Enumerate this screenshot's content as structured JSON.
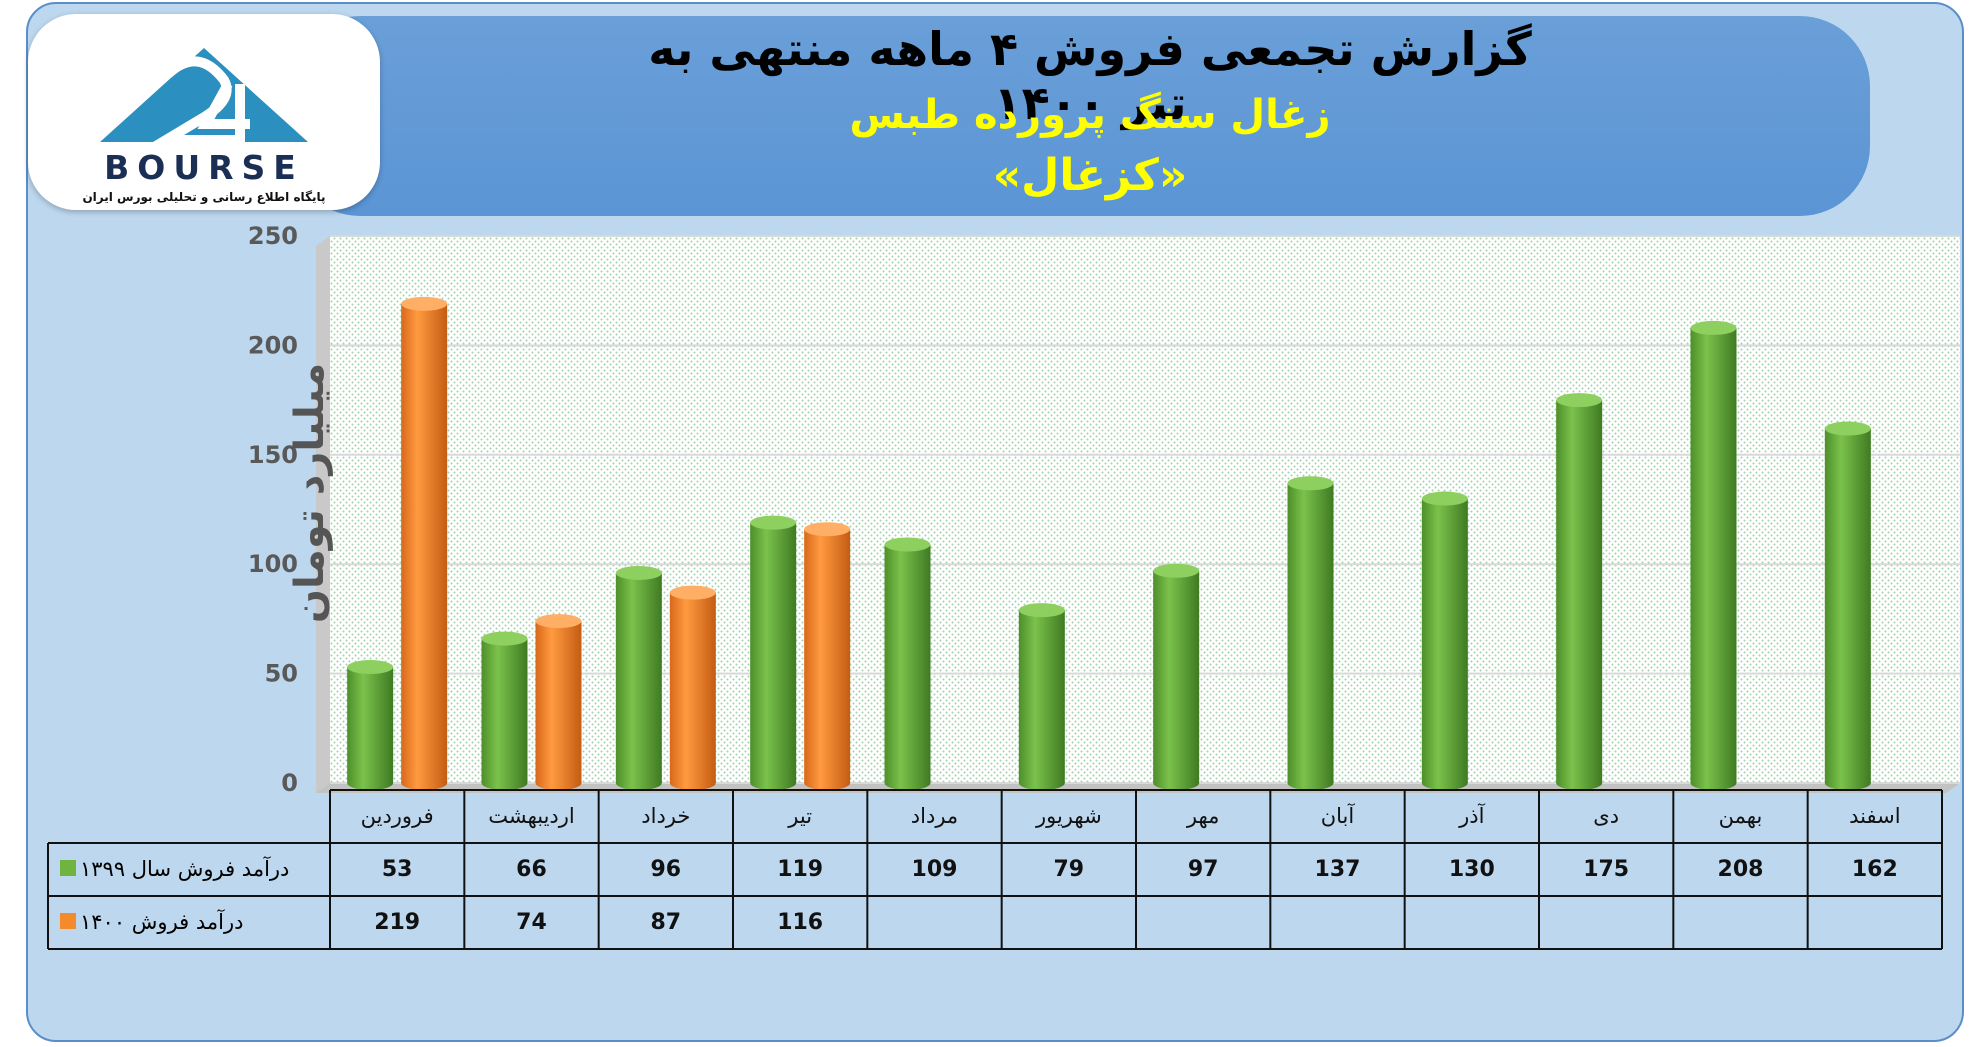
{
  "header": {
    "title": "گزارش تجمعی فروش ۴ ماهه منتهی به تیر ۱۴۰۰",
    "company": "زغال سنگ پرورده طبس",
    "symbol": "«کزغال»"
  },
  "logo": {
    "word": "BOURSE",
    "tagline": "پایگاه اطلاع رسانی و تحلیلی بورس ایران"
  },
  "colors": {
    "green": "#6fb441",
    "orange": "#f58a2b",
    "frame": "#bdd7ee",
    "banner": "#5b95d5"
  },
  "chart_data": {
    "type": "bar",
    "ylabel": "میلیارد تومان",
    "ylim": [
      0,
      250
    ],
    "yticks": [
      0,
      50,
      100,
      150,
      200,
      250
    ],
    "categories": [
      "فروردین",
      "اردیبهشت",
      "خرداد",
      "تیر",
      "مرداد",
      "شهریور",
      "مهر",
      "آبان",
      "آذر",
      "دی",
      "بهمن",
      "اسفند"
    ],
    "series": [
      {
        "name": "درآمد فروش سال ۱۳۹۹",
        "color": "#6fb441",
        "values": [
          53,
          66,
          96,
          119,
          109,
          79,
          97,
          137,
          130,
          175,
          208,
          162
        ]
      },
      {
        "name": "درآمد فروش ۱۴۰۰",
        "color": "#f58a2b",
        "values": [
          219,
          74,
          87,
          116,
          null,
          null,
          null,
          null,
          null,
          null,
          null,
          null
        ]
      }
    ]
  }
}
